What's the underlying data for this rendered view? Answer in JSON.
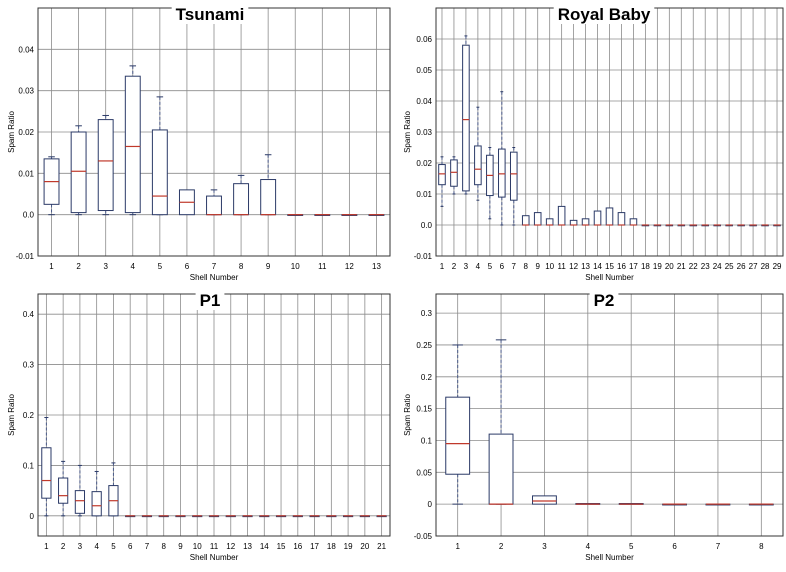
{
  "colors": {
    "box_stroke": "#2b3a67",
    "median": "#c0392b",
    "whisker": "#4a5a8a",
    "grid": "#8c8c8c",
    "frame": "#333333"
  },
  "chart_data": [
    {
      "type": "box",
      "title": "Tsunami",
      "xlabel": "Shell Number",
      "ylabel": "Spam Ratio",
      "categories": [
        "1",
        "2",
        "3",
        "4",
        "5",
        "6",
        "7",
        "8",
        "9",
        "10",
        "11",
        "12",
        "13"
      ],
      "yticks": [
        "-0.01",
        "0.0",
        "0.01",
        "0.02",
        "0.03",
        "0.04"
      ],
      "ylim": [
        -0.01,
        0.05
      ],
      "grid": true,
      "boxes": [
        {
          "min": 0.0,
          "q1": 0.0025,
          "median": 0.008,
          "q3": 0.0135,
          "max": 0.014
        },
        {
          "min": 0.0,
          "q1": 0.0005,
          "median": 0.0105,
          "q3": 0.02,
          "max": 0.0215
        },
        {
          "min": 0.0,
          "q1": 0.001,
          "median": 0.013,
          "q3": 0.023,
          "max": 0.024
        },
        {
          "min": 0.0,
          "q1": 0.0005,
          "median": 0.0165,
          "q3": 0.0335,
          "max": 0.036
        },
        {
          "min": 0.0,
          "q1": 0.0,
          "median": 0.0045,
          "q3": 0.0205,
          "max": 0.0285
        },
        {
          "min": 0.0,
          "q1": 0.0,
          "median": 0.003,
          "q3": 0.006,
          "max": 0.006
        },
        {
          "min": 0.0,
          "q1": 0.0,
          "median": 0.0,
          "q3": 0.0045,
          "max": 0.006
        },
        {
          "min": 0.0,
          "q1": 0.0,
          "median": 0.0,
          "q3": 0.0075,
          "max": 0.0095
        },
        {
          "min": 0.0,
          "q1": 0.0,
          "median": 0.0,
          "q3": 0.0085,
          "max": 0.0145
        },
        {
          "min": 0.0,
          "q1": 0.0,
          "median": 0.0,
          "q3": 0.0,
          "max": 0.0
        },
        {
          "min": 0.0,
          "q1": 0.0,
          "median": 0.0,
          "q3": 0.0,
          "max": 0.0
        },
        {
          "min": 0.0,
          "q1": 0.0,
          "median": 0.0,
          "q3": 0.0,
          "max": 0.0
        },
        {
          "min": 0.0,
          "q1": 0.0,
          "median": 0.0,
          "q3": 0.0,
          "max": 0.0
        }
      ]
    },
    {
      "type": "box",
      "title": "Royal Baby",
      "xlabel": "Shell Number",
      "ylabel": "Spam Ratio",
      "categories": [
        "1",
        "2",
        "3",
        "4",
        "5",
        "6",
        "7",
        "8",
        "9",
        "10",
        "11",
        "12",
        "13",
        "14",
        "15",
        "16",
        "17",
        "18",
        "19",
        "20",
        "21",
        "22",
        "23",
        "24",
        "25",
        "26",
        "27",
        "28",
        "29"
      ],
      "yticks": [
        "-0.01",
        "0.0",
        "0.01",
        "0.02",
        "0.03",
        "0.04",
        "0.05",
        "0.06"
      ],
      "ylim": [
        -0.01,
        0.07
      ],
      "grid": true,
      "boxes": [
        {
          "min": 0.006,
          "q1": 0.013,
          "median": 0.0165,
          "q3": 0.0195,
          "max": 0.022
        },
        {
          "min": 0.01,
          "q1": 0.0125,
          "median": 0.017,
          "q3": 0.021,
          "max": 0.022
        },
        {
          "min": 0.01,
          "q1": 0.011,
          "median": 0.034,
          "q3": 0.058,
          "max": 0.061
        },
        {
          "min": 0.008,
          "q1": 0.013,
          "median": 0.018,
          "q3": 0.0255,
          "max": 0.038
        },
        {
          "min": 0.002,
          "q1": 0.0095,
          "median": 0.016,
          "q3": 0.0225,
          "max": 0.025
        },
        {
          "min": 0.0,
          "q1": 0.009,
          "median": 0.0165,
          "q3": 0.0245,
          "max": 0.043
        },
        {
          "min": 0.0,
          "q1": 0.008,
          "median": 0.0165,
          "q3": 0.0235,
          "max": 0.025
        },
        {
          "min": 0.0,
          "q1": 0.0,
          "median": 0.0,
          "q3": 0.003,
          "max": 0.003
        },
        {
          "min": 0.0,
          "q1": 0.0,
          "median": 0.0,
          "q3": 0.004,
          "max": 0.004
        },
        {
          "min": 0.0,
          "q1": 0.0,
          "median": 0.0,
          "q3": 0.002,
          "max": 0.002
        },
        {
          "min": 0.0,
          "q1": 0.0,
          "median": 0.0,
          "q3": 0.006,
          "max": 0.006
        },
        {
          "min": 0.0,
          "q1": 0.0,
          "median": 0.0,
          "q3": 0.0015,
          "max": 0.0015
        },
        {
          "min": 0.0,
          "q1": 0.0,
          "median": 0.0,
          "q3": 0.002,
          "max": 0.002
        },
        {
          "min": 0.0,
          "q1": 0.0,
          "median": 0.0,
          "q3": 0.0045,
          "max": 0.0045
        },
        {
          "min": 0.0,
          "q1": 0.0,
          "median": 0.0,
          "q3": 0.0055,
          "max": 0.0055
        },
        {
          "min": 0.0,
          "q1": 0.0,
          "median": 0.0,
          "q3": 0.004,
          "max": 0.004
        },
        {
          "min": 0.0,
          "q1": 0.0,
          "median": 0.0,
          "q3": 0.002,
          "max": 0.002
        },
        {
          "min": 0.0,
          "q1": 0.0,
          "median": 0.0,
          "q3": 0.0,
          "max": 0.0
        },
        {
          "min": 0.0,
          "q1": 0.0,
          "median": 0.0,
          "q3": 0.0,
          "max": 0.0
        },
        {
          "min": 0.0,
          "q1": 0.0,
          "median": 0.0,
          "q3": 0.0,
          "max": 0.0
        },
        {
          "min": 0.0,
          "q1": 0.0,
          "median": 0.0,
          "q3": 0.0,
          "max": 0.0
        },
        {
          "min": 0.0,
          "q1": 0.0,
          "median": 0.0,
          "q3": 0.0,
          "max": 0.0
        },
        {
          "min": 0.0,
          "q1": 0.0,
          "median": 0.0,
          "q3": 0.0,
          "max": 0.0
        },
        {
          "min": 0.0,
          "q1": 0.0,
          "median": 0.0,
          "q3": 0.0,
          "max": 0.0
        },
        {
          "min": 0.0,
          "q1": 0.0,
          "median": 0.0,
          "q3": 0.0,
          "max": 0.0
        },
        {
          "min": 0.0,
          "q1": 0.0,
          "median": 0.0,
          "q3": 0.0,
          "max": 0.0
        },
        {
          "min": 0.0,
          "q1": 0.0,
          "median": 0.0,
          "q3": 0.0,
          "max": 0.0
        },
        {
          "min": 0.0,
          "q1": 0.0,
          "median": 0.0,
          "q3": 0.0,
          "max": 0.0
        },
        {
          "min": 0.0,
          "q1": 0.0,
          "median": 0.0,
          "q3": 0.0,
          "max": 0.0
        }
      ]
    },
    {
      "type": "box",
      "title": "P1",
      "xlabel": "Shell Number",
      "ylabel": "Spam Ratio",
      "categories": [
        "1",
        "2",
        "3",
        "4",
        "5",
        "6",
        "7",
        "8",
        "9",
        "10",
        "11",
        "12",
        "13",
        "14",
        "15",
        "16",
        "17",
        "18",
        "19",
        "20",
        "21"
      ],
      "yticks": [
        "0",
        "0.1",
        "0.2",
        "0.3",
        "0.4"
      ],
      "ylim": [
        -0.04,
        0.44
      ],
      "grid": true,
      "boxes": [
        {
          "min": 0.0,
          "q1": 0.035,
          "median": 0.07,
          "q3": 0.135,
          "max": 0.195
        },
        {
          "min": 0.0,
          "q1": 0.025,
          "median": 0.04,
          "q3": 0.075,
          "max": 0.108
        },
        {
          "min": 0.0,
          "q1": 0.005,
          "median": 0.03,
          "q3": 0.05,
          "max": 0.1
        },
        {
          "min": 0.0,
          "q1": 0.0,
          "median": 0.02,
          "q3": 0.048,
          "max": 0.088
        },
        {
          "min": 0.0,
          "q1": 0.0,
          "median": 0.03,
          "q3": 0.06,
          "max": 0.105
        },
        {
          "min": 0.0,
          "q1": 0.0,
          "median": 0.0,
          "q3": 0.0,
          "max": 0.0
        },
        {
          "min": 0.0,
          "q1": 0.0,
          "median": 0.0,
          "q3": 0.0,
          "max": 0.0
        },
        {
          "min": 0.0,
          "q1": 0.0,
          "median": 0.0,
          "q3": 0.0,
          "max": 0.0
        },
        {
          "min": 0.0,
          "q1": 0.0,
          "median": 0.0,
          "q3": 0.0,
          "max": 0.0
        },
        {
          "min": 0.0,
          "q1": 0.0,
          "median": 0.0,
          "q3": 0.0,
          "max": 0.0
        },
        {
          "min": 0.0,
          "q1": 0.0,
          "median": 0.0,
          "q3": 0.0,
          "max": 0.0
        },
        {
          "min": 0.0,
          "q1": 0.0,
          "median": 0.0,
          "q3": 0.0,
          "max": 0.0
        },
        {
          "min": 0.0,
          "q1": 0.0,
          "median": 0.0,
          "q3": 0.0,
          "max": 0.0
        },
        {
          "min": 0.0,
          "q1": 0.0,
          "median": 0.0,
          "q3": 0.0,
          "max": 0.0
        },
        {
          "min": 0.0,
          "q1": 0.0,
          "median": 0.0,
          "q3": 0.0,
          "max": 0.0
        },
        {
          "min": 0.0,
          "q1": 0.0,
          "median": 0.0,
          "q3": 0.0,
          "max": 0.0
        },
        {
          "min": 0.0,
          "q1": 0.0,
          "median": 0.0,
          "q3": 0.0,
          "max": 0.0
        },
        {
          "min": 0.0,
          "q1": 0.0,
          "median": 0.0,
          "q3": 0.0,
          "max": 0.0
        },
        {
          "min": 0.0,
          "q1": 0.0,
          "median": 0.0,
          "q3": 0.0,
          "max": 0.0
        },
        {
          "min": 0.0,
          "q1": 0.0,
          "median": 0.0,
          "q3": 0.0,
          "max": 0.0
        },
        {
          "min": 0.0,
          "q1": 0.0,
          "median": 0.0,
          "q3": 0.0,
          "max": 0.0
        }
      ]
    },
    {
      "type": "box",
      "title": "P2",
      "xlabel": "Shell Number",
      "ylabel": "Spam Ratio",
      "categories": [
        "1",
        "2",
        "3",
        "4",
        "5",
        "6",
        "7",
        "8"
      ],
      "yticks": [
        "-0.05",
        "0",
        "0.05",
        "0.1",
        "0.15",
        "0.2",
        "0.25",
        "0.3"
      ],
      "ylim": [
        -0.05,
        0.33
      ],
      "grid": true,
      "boxes": [
        {
          "min": 0.0,
          "q1": 0.047,
          "median": 0.095,
          "q3": 0.168,
          "max": 0.25
        },
        {
          "min": 0.0,
          "q1": 0.0,
          "median": 0.0,
          "q3": 0.11,
          "max": 0.258
        },
        {
          "min": 0.0,
          "q1": 0.0,
          "median": 0.005,
          "q3": 0.013,
          "max": 0.013
        },
        {
          "min": 0.0,
          "q1": 0.0,
          "median": 0.0,
          "q3": 0.001,
          "max": 0.001
        },
        {
          "min": 0.0,
          "q1": 0.0,
          "median": 0.0,
          "q3": 0.001,
          "max": 0.001
        },
        {
          "min": 0.0,
          "q1": 0.0,
          "median": 0.0,
          "q3": 0.0,
          "max": 0.0
        },
        {
          "min": 0.0,
          "q1": 0.0,
          "median": 0.0,
          "q3": 0.0,
          "max": 0.0
        },
        {
          "min": 0.0,
          "q1": 0.0,
          "median": 0.0,
          "q3": 0.0,
          "max": 0.0
        }
      ]
    }
  ]
}
